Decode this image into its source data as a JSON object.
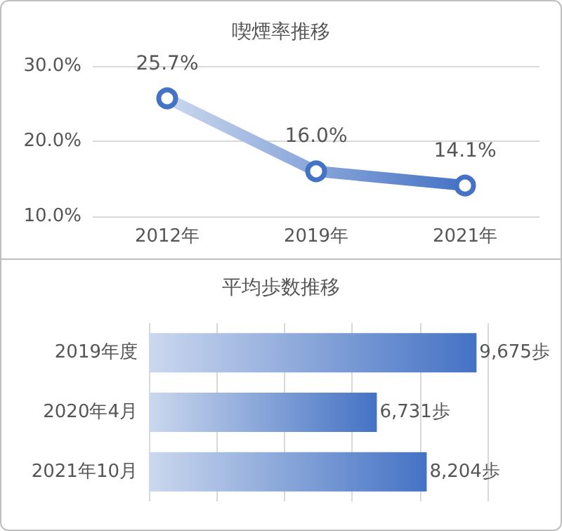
{
  "chart_data": [
    {
      "type": "line",
      "title": "喫煙率推移",
      "categories": [
        "2012年",
        "2019年",
        "2021年"
      ],
      "series": [
        {
          "color": "#4472c4",
          "values": [
            25.7,
            16.0,
            14.1
          ],
          "value_labels": [
            "25.7%",
            "16.0%",
            "14.1%"
          ]
        }
      ],
      "ylim": [
        10,
        30
      ],
      "yticks": [
        {
          "value": 10,
          "label": "10.0%"
        },
        {
          "value": 20,
          "label": "20.0%"
        },
        {
          "value": 30,
          "label": "30.0%"
        }
      ],
      "grid": "y",
      "marker": "circle"
    },
    {
      "type": "bar",
      "orientation": "horizontal",
      "title": "平均歩数推移",
      "categories": [
        "2019年度",
        "2020年4月",
        "2021年10月"
      ],
      "series": [
        {
          "color": "#4472c4",
          "values": [
            9675,
            6731,
            8204
          ],
          "value_labels": [
            "9,675歩",
            "6,731歩",
            "8,204歩"
          ]
        }
      ],
      "xlim": [
        0,
        10000
      ],
      "xticks": [
        {
          "value": 0,
          "label": null
        },
        {
          "value": 2000,
          "label": null
        },
        {
          "value": 4000,
          "label": null
        },
        {
          "value": 6000,
          "label": null
        },
        {
          "value": 8000,
          "label": null
        },
        {
          "value": 10000,
          "label": null
        }
      ],
      "grid": "x",
      "tick_labels": "y"
    }
  ]
}
